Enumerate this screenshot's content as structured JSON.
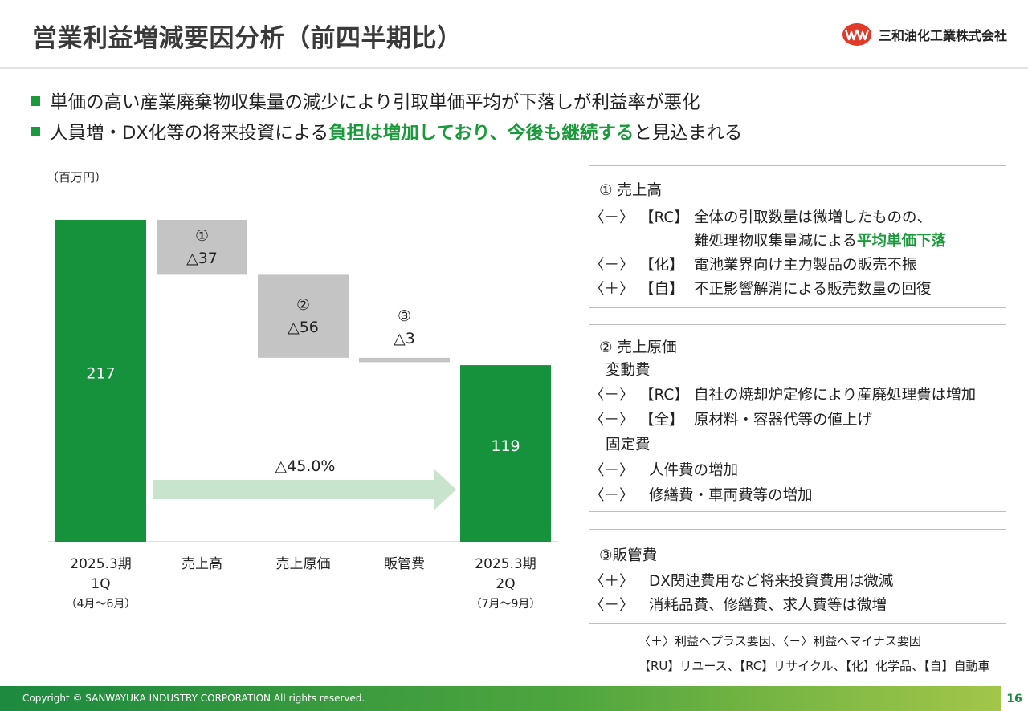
{
  "header": {
    "title": "営業利益増減要因分析（前四半期比）",
    "company": "三和油化工業株式会社",
    "logo_icon": "sanwa-logo-icon",
    "logo_color": "#e03a2a"
  },
  "bullets": [
    {
      "text": "単価の高い産業廃棄物収集量の減少により引取単価平均が下落しが利益率が悪化"
    },
    {
      "pre": "人員増・DX化等の将来投資による",
      "highlight": "負担は増加しており、今後も継続する",
      "post": "と見込まれる"
    }
  ],
  "colors": {
    "accent": "#1a9a3a",
    "bar_green": "#15923b",
    "bar_gray": "#c4c4c4",
    "arrow": "#c8e4cc"
  },
  "chart_data": {
    "type": "waterfall",
    "unit": "（百万円）",
    "ylim": [
      0,
      217
    ],
    "categories": [
      {
        "label": [
          "2025.3期",
          "1Q"
        ],
        "sub": "（4月～6月）"
      },
      {
        "label": [
          "売上高"
        ]
      },
      {
        "label": [
          "売上原価"
        ]
      },
      {
        "label": [
          "販管費"
        ]
      },
      {
        "label": [
          "2025.3期",
          "2Q"
        ],
        "sub": "（7月～9月）"
      }
    ],
    "bars": [
      {
        "kind": "total",
        "value": 217,
        "label": "217"
      },
      {
        "kind": "decrease",
        "value": -37,
        "marker": "①",
        "label": "△37"
      },
      {
        "kind": "decrease",
        "value": -56,
        "marker": "②",
        "label": "△56"
      },
      {
        "kind": "decrease",
        "value": -3,
        "marker": "③",
        "label": "△3"
      },
      {
        "kind": "total",
        "value": 119,
        "label": "119"
      }
    ],
    "change_label": "△45.0%"
  },
  "panel1": {
    "title": "① 売上高",
    "rows": [
      {
        "sign": "〈－〉",
        "seg": "【RC】",
        "text": "全体の引取数量は微増したものの、"
      },
      {
        "sign": "",
        "seg": "",
        "text": "難処理物収集量減による",
        "highlight": "平均単価下落"
      },
      {
        "sign": "〈－〉",
        "seg": "【化】",
        "text": "電池業界向け主力製品の販売不振"
      },
      {
        "sign": "〈＋〉",
        "seg": "【自】",
        "text": "不正影響解消による販売数量の回復"
      }
    ]
  },
  "panel2": {
    "title": "② 売上原価",
    "sub1": "変動費",
    "rows1": [
      {
        "sign": "〈－〉",
        "seg": "【RC】",
        "text": "自社の焼却炉定修により産廃処理費は増加"
      },
      {
        "sign": "〈－〉",
        "seg": "【全】",
        "text": "原材料・容器代等の値上げ"
      }
    ],
    "sub2": "固定費",
    "rows2": [
      {
        "sign": "〈－〉",
        "text": "人件費の増加"
      },
      {
        "sign": "〈－〉",
        "text": "修繕費・車両費等の増加"
      }
    ]
  },
  "panel3": {
    "title": "③販管費",
    "rows": [
      {
        "sign": "〈＋〉",
        "text": "DX関連費用など将来投資費用は微減"
      },
      {
        "sign": "〈－〉",
        "text": "消耗品費、修繕費、求人費等は微増"
      }
    ]
  },
  "notes": [
    "〈＋〉利益へプラス要因、〈－〉利益へマイナス要因",
    "【RU】リユース、【RC】リサイクル、【化】化学品、【自】自動車"
  ],
  "footer": {
    "copyright": "Copyright © SANWAYUKA INDUSTRY CORPORATION All rights reserved.",
    "page": "16"
  }
}
